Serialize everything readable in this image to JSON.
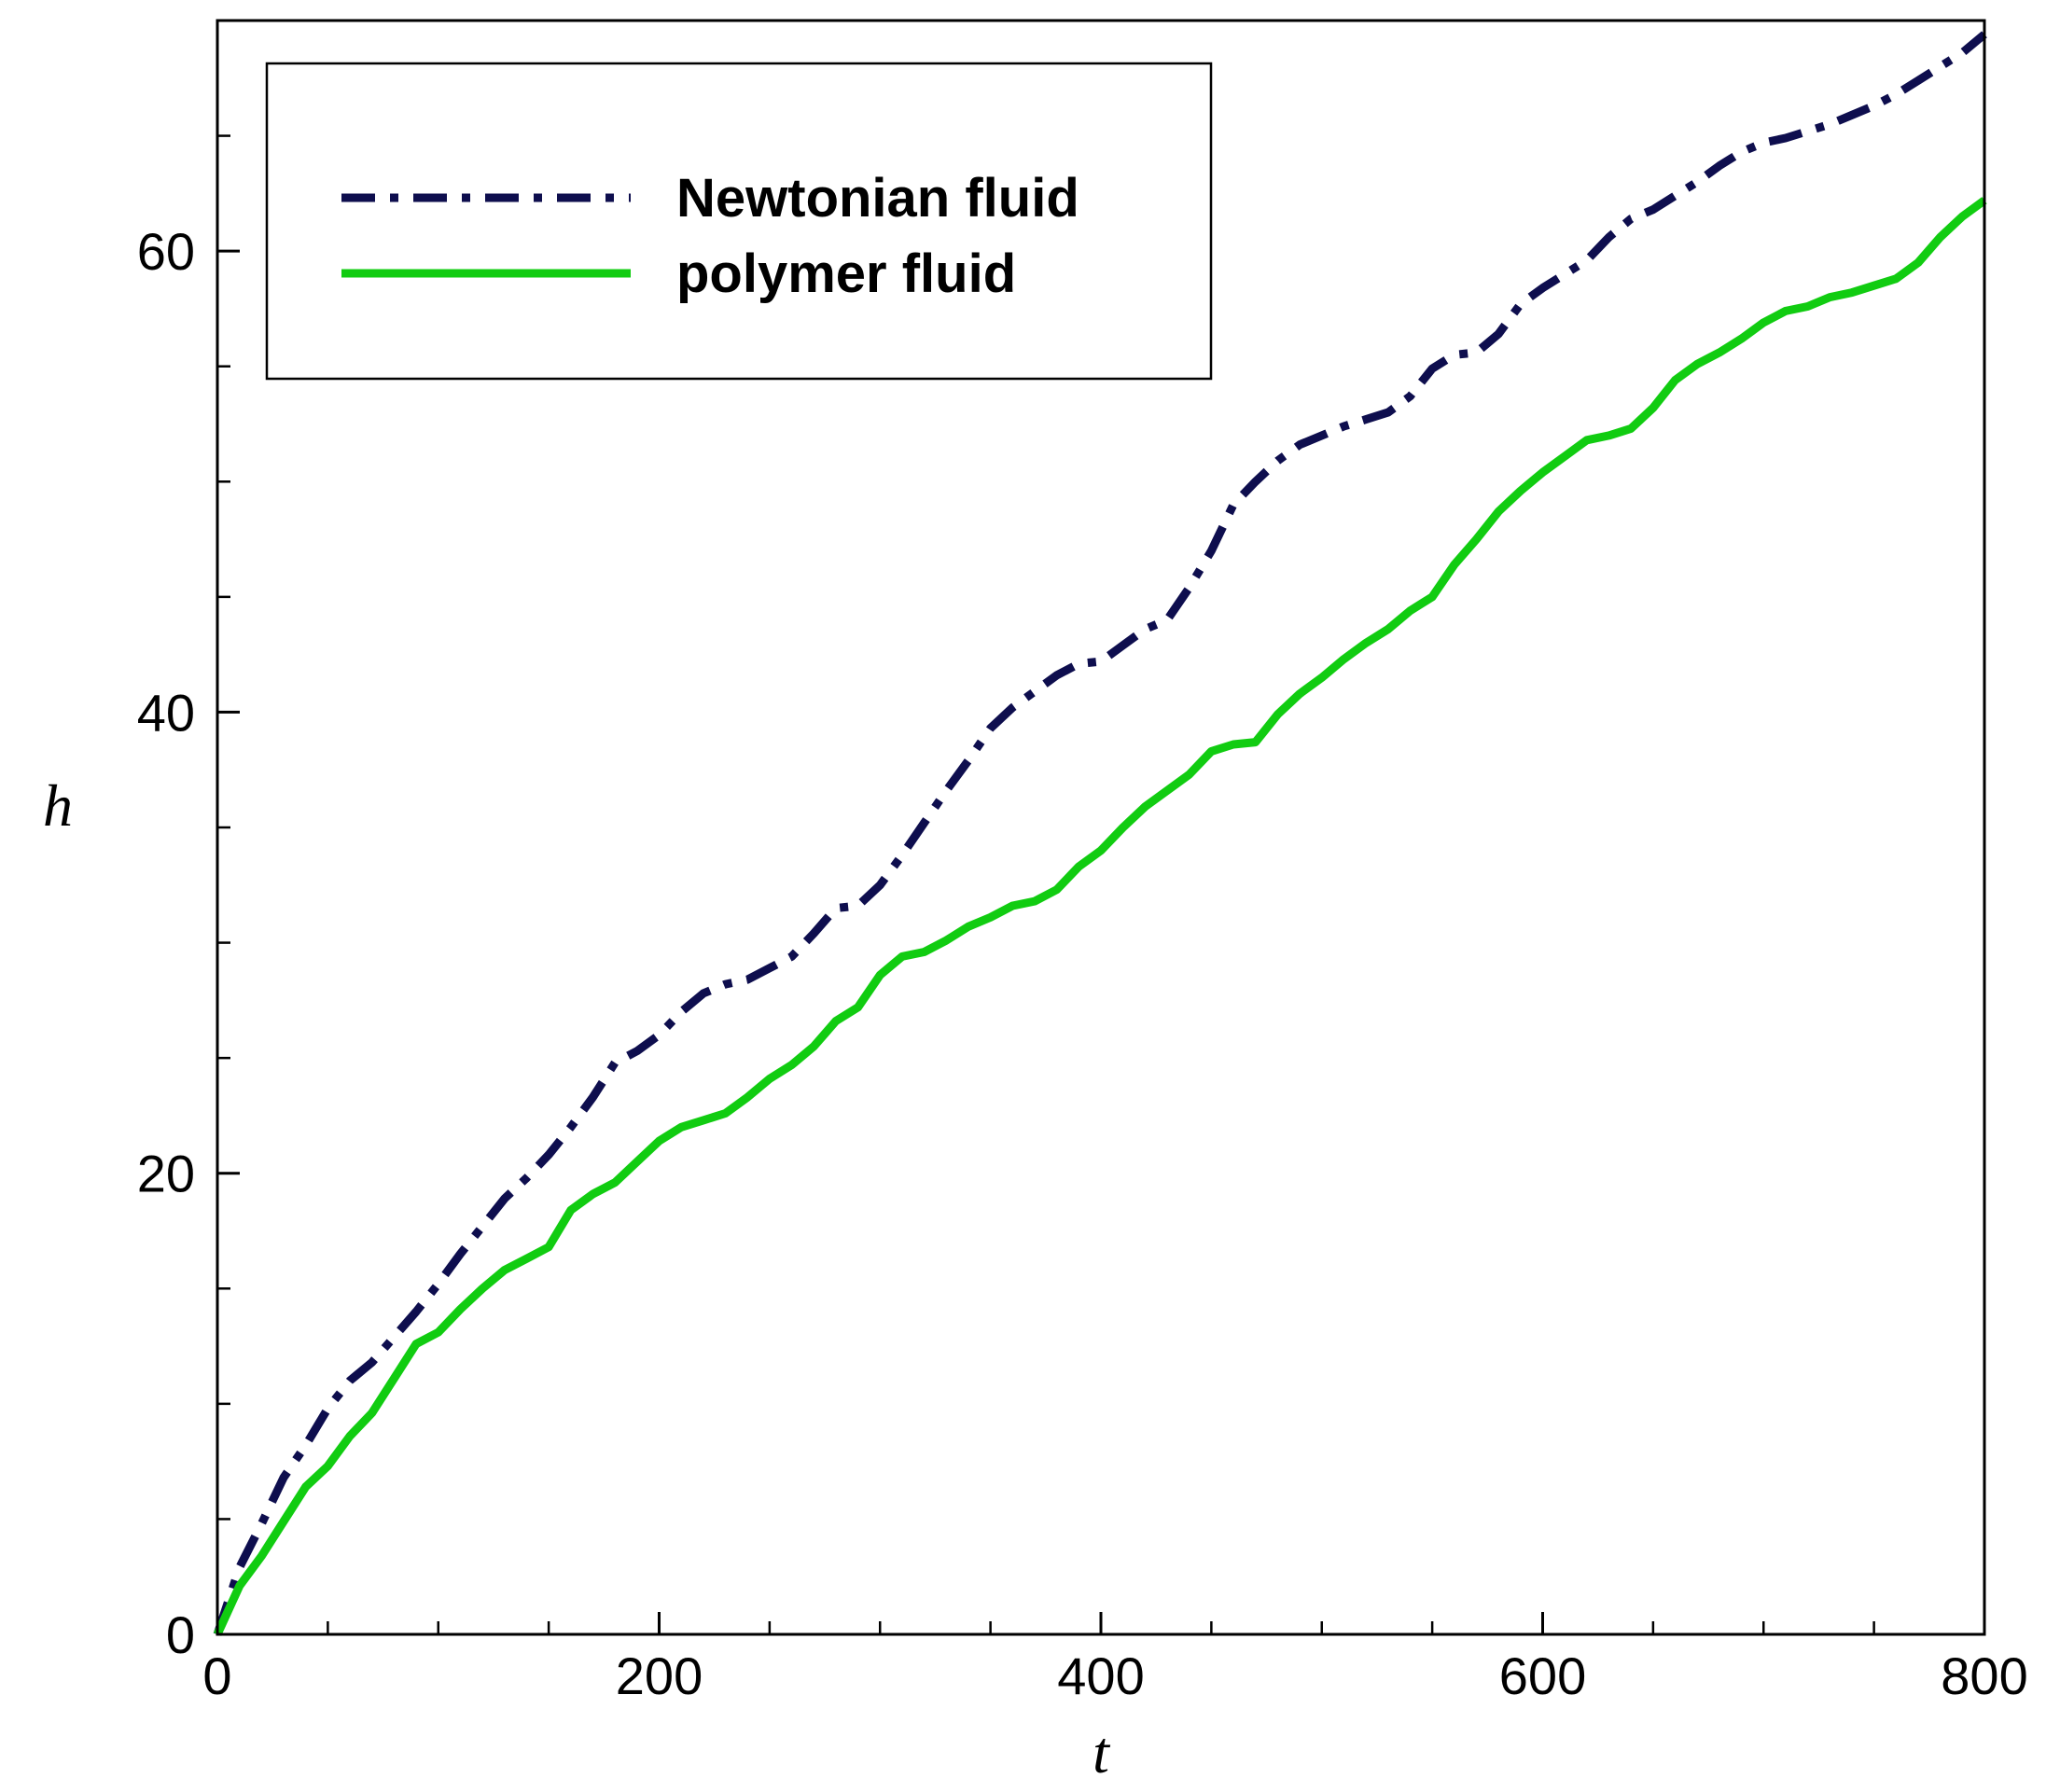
{
  "chart_data": {
    "type": "line",
    "title": "",
    "xlabel": "t",
    "ylabel": "h",
    "xlim": [
      0,
      800
    ],
    "ylim": [
      0,
      70
    ],
    "x_ticks_major": [
      0,
      200,
      400,
      600,
      800
    ],
    "x_tick_labels": [
      "0",
      "200",
      "400",
      "600",
      "800"
    ],
    "x_ticks_minor": [
      50,
      100,
      150,
      250,
      300,
      350,
      450,
      500,
      550,
      650,
      700,
      750
    ],
    "y_ticks_major": [
      0,
      20,
      40,
      60
    ],
    "y_tick_labels": [
      "0",
      "20",
      "40",
      "60"
    ],
    "y_ticks_minor": [
      5,
      10,
      15,
      25,
      30,
      35,
      45,
      50,
      55,
      65
    ],
    "grid": false,
    "legend_position": "top-left",
    "series": [
      {
        "name": "Newtonian fluid",
        "color": "#0e0e4e",
        "style": "dash-dot",
        "x": [
          0,
          10,
          20,
          30,
          40,
          50,
          60,
          70,
          80,
          90,
          100,
          110,
          120,
          130,
          140,
          150,
          160,
          170,
          180,
          190,
          200,
          210,
          220,
          230,
          240,
          250,
          260,
          270,
          280,
          290,
          300,
          310,
          320,
          330,
          340,
          350,
          360,
          370,
          380,
          390,
          400,
          410,
          420,
          430,
          440,
          450,
          460,
          470,
          480,
          490,
          500,
          510,
          520,
          530,
          540,
          550,
          560,
          570,
          580,
          590,
          600,
          610,
          620,
          630,
          640,
          650,
          660,
          670,
          680,
          690,
          700,
          710,
          720,
          730,
          740,
          750,
          760,
          770,
          780,
          790,
          800
        ],
        "y": [
          0,
          2.9,
          4.8,
          6.8,
          8.2,
          9.8,
          11.0,
          11.8,
          12.9,
          14.0,
          15.2,
          16.5,
          17.7,
          18.9,
          19.8,
          20.8,
          22.0,
          23.3,
          24.8,
          25.3,
          26.0,
          27.0,
          27.8,
          28.2,
          28.4,
          28.9,
          29.4,
          30.4,
          31.5,
          31.6,
          32.5,
          33.8,
          35.2,
          36.6,
          37.9,
          39.3,
          40.2,
          40.9,
          41.6,
          42.1,
          42.2,
          42.9,
          43.6,
          44.0,
          45.4,
          47.0,
          49.0,
          50.0,
          50.9,
          51.6,
          52.0,
          52.4,
          52.7,
          53.0,
          53.7,
          54.9,
          55.5,
          55.6,
          56.4,
          57.7,
          58.4,
          59.0,
          59.6,
          60.6,
          61.4,
          61.8,
          62.4,
          63.0,
          63.7,
          64.3,
          64.7,
          64.9,
          65.2,
          65.5,
          65.9,
          66.3,
          66.8,
          67.4,
          68.0,
          68.6,
          69.4
        ]
      },
      {
        "name": "polymer fluid",
        "color": "#11cc11",
        "style": "solid",
        "x": [
          0,
          10,
          20,
          30,
          40,
          50,
          60,
          70,
          80,
          90,
          100,
          110,
          120,
          130,
          140,
          150,
          160,
          170,
          180,
          190,
          200,
          210,
          220,
          230,
          240,
          250,
          260,
          270,
          280,
          290,
          300,
          310,
          320,
          330,
          340,
          350,
          360,
          370,
          380,
          390,
          400,
          410,
          420,
          430,
          440,
          450,
          460,
          470,
          480,
          490,
          500,
          510,
          520,
          530,
          540,
          550,
          560,
          570,
          580,
          590,
          600,
          610,
          620,
          630,
          640,
          650,
          660,
          670,
          680,
          690,
          700,
          710,
          720,
          730,
          740,
          750,
          760,
          770,
          780,
          790,
          800
        ],
        "y": [
          0,
          2.1,
          3.4,
          4.9,
          6.4,
          7.3,
          8.6,
          9.6,
          11.1,
          12.6,
          13.1,
          14.1,
          15.0,
          15.8,
          16.3,
          16.8,
          18.4,
          19.1,
          19.6,
          20.5,
          21.4,
          22.0,
          22.3,
          22.6,
          23.3,
          24.1,
          24.7,
          25.5,
          26.6,
          27.2,
          28.6,
          29.4,
          29.6,
          30.1,
          30.7,
          31.1,
          31.6,
          31.8,
          32.3,
          33.3,
          34.0,
          35.0,
          35.9,
          36.6,
          37.3,
          38.3,
          38.6,
          38.7,
          39.9,
          40.8,
          41.5,
          42.3,
          43.0,
          43.6,
          44.4,
          45.0,
          46.4,
          47.5,
          48.7,
          49.6,
          50.4,
          51.1,
          51.8,
          52.0,
          52.3,
          53.2,
          54.4,
          55.1,
          55.6,
          56.2,
          56.9,
          57.4,
          57.6,
          58.0,
          58.2,
          58.5,
          58.8,
          59.5,
          60.6,
          61.5,
          62.2
        ]
      }
    ]
  }
}
